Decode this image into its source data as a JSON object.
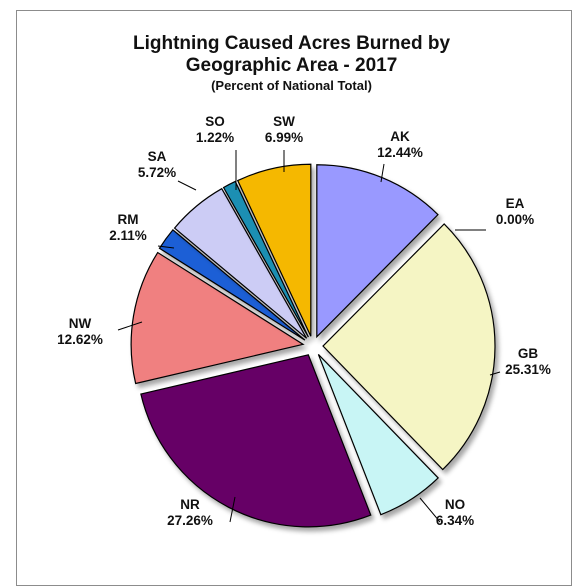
{
  "chart_data": {
    "type": "pie",
    "title": "Lightning Caused Acres Burned by",
    "title_line2": "Geographic Area - 2017",
    "subtitle": "(Percent of National Total)",
    "slices": [
      {
        "label": "AK",
        "value": 12.44,
        "value_text": "12.44%",
        "color": "#9999ff"
      },
      {
        "label": "EA",
        "value": 0.0,
        "value_text": "0.00%",
        "color": "#cccccc"
      },
      {
        "label": "GB",
        "value": 25.31,
        "value_text": "25.31%",
        "color": "#f5f5c4"
      },
      {
        "label": "NO",
        "value": 6.34,
        "value_text": "6.34%",
        "color": "#c8f5f5"
      },
      {
        "label": "NR",
        "value": 27.26,
        "value_text": "27.26%",
        "color": "#660066"
      },
      {
        "label": "NW",
        "value": 12.62,
        "value_text": "12.62%",
        "color": "#f08080"
      },
      {
        "label": "RM",
        "value": 2.11,
        "value_text": "2.11%",
        "color": "#1f5fd6"
      },
      {
        "label": "SA",
        "value": 5.72,
        "value_text": "5.72%",
        "color": "#ccccf5"
      },
      {
        "label": "SO",
        "value": 1.22,
        "value_text": "1.22%",
        "color": "#1a8fb3"
      },
      {
        "label": "SW",
        "value": 6.99,
        "value_text": "6.99%",
        "color": "#f5b800"
      }
    ],
    "start": "12 o'clock, clockwise",
    "exploded": true
  }
}
